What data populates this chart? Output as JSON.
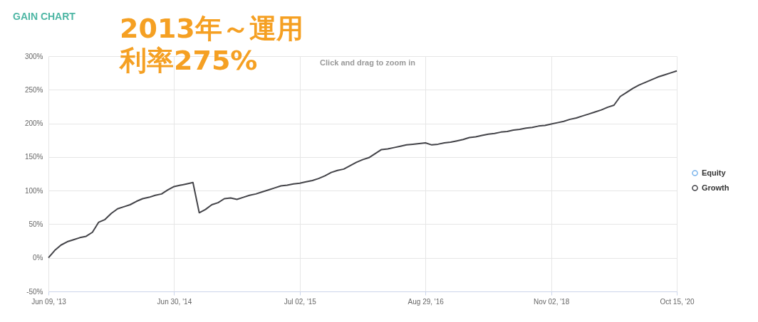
{
  "chart_data": {
    "type": "line",
    "title": "GAIN CHART",
    "annotations": [
      "2013年～運用",
      "利率275%",
      "Click and drag to zoom in"
    ],
    "categories": [
      "Jun 09, '13",
      null,
      null,
      null,
      null,
      null,
      null,
      null,
      null,
      null,
      null,
      null,
      null,
      null,
      null,
      null,
      null,
      null,
      null,
      null,
      "Jun 30, '14",
      null,
      null,
      null,
      null,
      null,
      null,
      null,
      null,
      null,
      null,
      null,
      null,
      null,
      null,
      null,
      null,
      null,
      null,
      null,
      "Jul 02, '15",
      null,
      null,
      null,
      null,
      null,
      null,
      null,
      null,
      null,
      null,
      null,
      null,
      null,
      null,
      null,
      null,
      null,
      null,
      null,
      "Aug 29, '16",
      null,
      null,
      null,
      null,
      null,
      null,
      null,
      null,
      null,
      null,
      null,
      null,
      null,
      null,
      null,
      null,
      null,
      null,
      null,
      "Nov 02, '18",
      null,
      null,
      null,
      null,
      null,
      null,
      null,
      null,
      null,
      null,
      null,
      null,
      null,
      null,
      null,
      null,
      null,
      null,
      null,
      "Oct 15, '20"
    ],
    "series": [
      {
        "name": "Equity",
        "color": "#7cb5ec",
        "values": [
          null,
          null,
          null,
          null,
          null,
          null,
          null,
          null,
          null,
          null,
          null,
          null,
          null,
          null,
          null,
          null,
          null,
          null,
          null,
          null,
          null,
          null,
          null,
          null,
          null,
          null,
          null,
          null,
          null,
          null,
          null,
          null,
          null,
          null,
          null,
          null,
          null,
          null,
          null,
          null,
          null,
          null,
          null,
          null,
          null,
          null,
          null,
          null,
          null,
          null,
          null,
          null,
          null,
          null,
          null,
          null,
          null,
          null,
          null,
          null,
          null,
          null,
          null,
          null,
          null,
          null,
          null,
          null,
          null,
          null,
          null,
          null,
          null,
          null,
          null,
          null,
          null,
          null,
          null,
          null,
          null,
          null,
          null,
          null,
          null,
          null,
          null,
          null,
          null,
          null,
          null,
          null,
          null,
          null,
          null,
          null,
          null,
          null,
          null,
          null,
          null
        ]
      },
      {
        "name": "Growth",
        "color": "#434348",
        "values": [
          0,
          11,
          19,
          24,
          27,
          30,
          32,
          38,
          53,
          57,
          66,
          73,
          76,
          79,
          84,
          88,
          90,
          93,
          95,
          101,
          106,
          108,
          110,
          112,
          67,
          72,
          79,
          82,
          88,
          89,
          87,
          90,
          93,
          95,
          98,
          101,
          104,
          107,
          108,
          110,
          111,
          113,
          115,
          118,
          122,
          127,
          130,
          132,
          137,
          142,
          146,
          149,
          155,
          161,
          162,
          164,
          166,
          168,
          169,
          170,
          171,
          168,
          169,
          171,
          172,
          174,
          176,
          179,
          180,
          182,
          184,
          185,
          187,
          188,
          190,
          191,
          193,
          194,
          196,
          197,
          199,
          201,
          203,
          206,
          208,
          211,
          214,
          217,
          220,
          224,
          227,
          240,
          246,
          252,
          257,
          261,
          265,
          269,
          272,
          275,
          278
        ]
      }
    ],
    "ylim": [
      -50,
      300
    ],
    "yticks": [
      {
        "value": -50,
        "label": "-50%"
      },
      {
        "value": 0,
        "label": "0%"
      },
      {
        "value": 50,
        "label": "50%"
      },
      {
        "value": 100,
        "label": "100%"
      },
      {
        "value": 150,
        "label": "150%"
      },
      {
        "value": 200,
        "label": "200%"
      },
      {
        "value": 250,
        "label": "250%"
      },
      {
        "value": 300,
        "label": "300%"
      }
    ],
    "grid": true,
    "legend": "right",
    "marker": "none",
    "line_style": "solid"
  }
}
